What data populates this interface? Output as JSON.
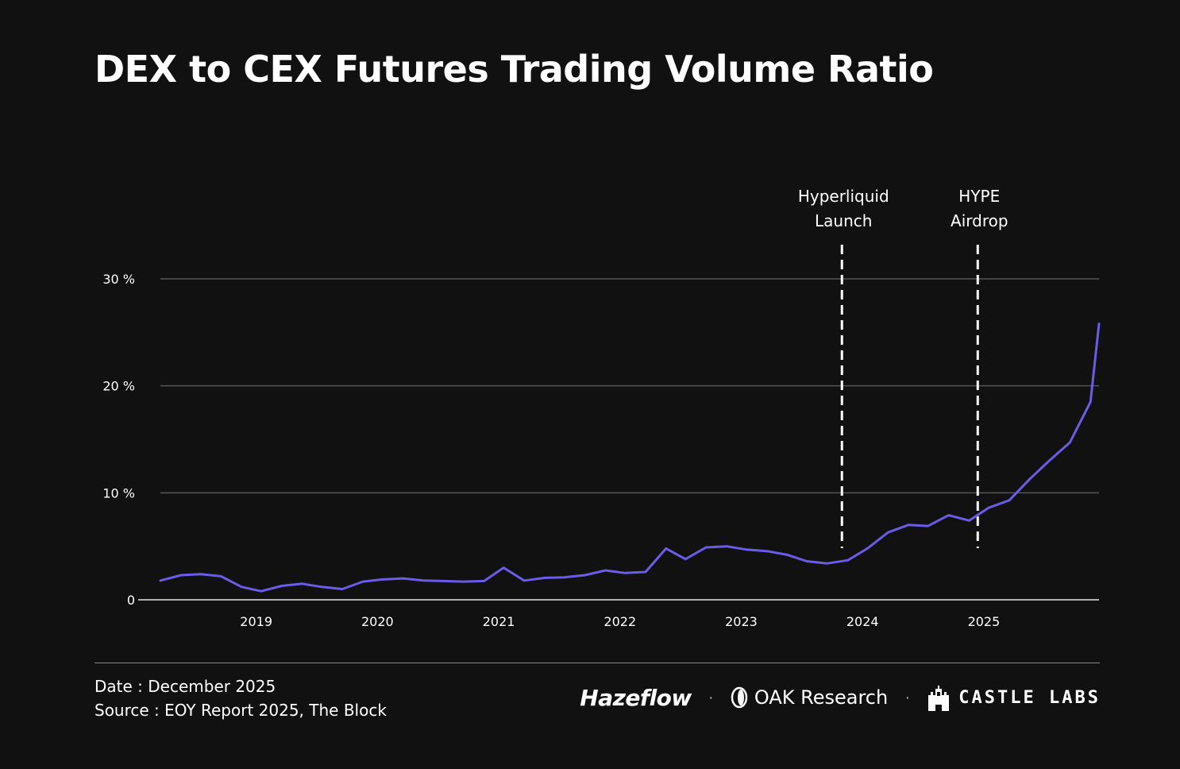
{
  "title": "DEX to CEX Futures Trading Volume Ratio",
  "footer": {
    "date": "Date : December 2025",
    "source": "Source : EOY Report 2025, The Block"
  },
  "logos": {
    "hazeflow": "Hazeflow",
    "oak": "OAK Research",
    "castle": "CASTLE LABS",
    "separator": "·"
  },
  "colors": {
    "background": "#111111",
    "line": "#6b5ce7",
    "grid": "#555555",
    "text": "#ffffff"
  },
  "chart_data": {
    "type": "line",
    "title": "DEX to CEX Futures Trading Volume Ratio",
    "xlabel": "",
    "ylabel": "",
    "ylim": [
      0,
      30
    ],
    "xlim": [
      2018.21,
      2025.95
    ],
    "y_ticks": [
      {
        "value": 0,
        "label": "0"
      },
      {
        "value": 10,
        "label": "10 %"
      },
      {
        "value": 20,
        "label": "20 %"
      },
      {
        "value": 30,
        "label": "30 %"
      }
    ],
    "x_ticks": [
      {
        "value": 2019,
        "label": "2019"
      },
      {
        "value": 2020,
        "label": "2020"
      },
      {
        "value": 2021,
        "label": "2021"
      },
      {
        "value": 2022,
        "label": "2022"
      },
      {
        "value": 2023,
        "label": "2023"
      },
      {
        "value": 2024,
        "label": "2024"
      },
      {
        "value": 2025,
        "label": "2025"
      }
    ],
    "grid": true,
    "series": [
      {
        "values": [
          [
            2018.21,
            1.8
          ],
          [
            2018.38,
            2.3
          ],
          [
            2018.54,
            2.4
          ],
          [
            2018.71,
            2.2
          ],
          [
            2018.88,
            1.2
          ],
          [
            2019.04,
            0.8
          ],
          [
            2019.21,
            1.3
          ],
          [
            2019.38,
            1.5
          ],
          [
            2019.54,
            1.2
          ],
          [
            2019.71,
            1.0
          ],
          [
            2019.88,
            1.7
          ],
          [
            2020.04,
            1.9
          ],
          [
            2020.21,
            2.0
          ],
          [
            2020.38,
            1.8
          ],
          [
            2020.54,
            1.75
          ],
          [
            2020.71,
            1.7
          ],
          [
            2020.88,
            1.75
          ],
          [
            2021.04,
            3.0
          ],
          [
            2021.21,
            1.8
          ],
          [
            2021.38,
            2.05
          ],
          [
            2021.54,
            2.1
          ],
          [
            2021.71,
            2.3
          ],
          [
            2021.88,
            2.75
          ],
          [
            2022.04,
            2.5
          ],
          [
            2022.21,
            2.6
          ],
          [
            2022.38,
            4.8
          ],
          [
            2022.54,
            3.8
          ],
          [
            2022.71,
            4.9
          ],
          [
            2022.88,
            5.0
          ],
          [
            2023.04,
            4.7
          ],
          [
            2023.21,
            4.55
          ],
          [
            2023.38,
            4.2
          ],
          [
            2023.54,
            3.6
          ],
          [
            2023.71,
            3.4
          ],
          [
            2023.88,
            3.7
          ],
          [
            2024.04,
            4.8
          ],
          [
            2024.21,
            6.3
          ],
          [
            2024.38,
            7.0
          ],
          [
            2024.54,
            6.9
          ],
          [
            2024.71,
            7.9
          ],
          [
            2024.88,
            7.4
          ],
          [
            2025.04,
            8.6
          ],
          [
            2025.21,
            9.3
          ],
          [
            2025.38,
            11.3
          ],
          [
            2025.54,
            13.0
          ],
          [
            2025.71,
            14.7
          ],
          [
            2025.88,
            18.5
          ],
          [
            2025.95,
            25.8
          ]
        ]
      }
    ],
    "annotations": [
      {
        "x": 2023.83,
        "lines": [
          "Hyperliquid",
          "Launch"
        ],
        "style": "dashed-vertical"
      },
      {
        "x": 2024.95,
        "lines": [
          "HYPE",
          "Airdrop"
        ],
        "style": "dashed-vertical"
      }
    ]
  }
}
